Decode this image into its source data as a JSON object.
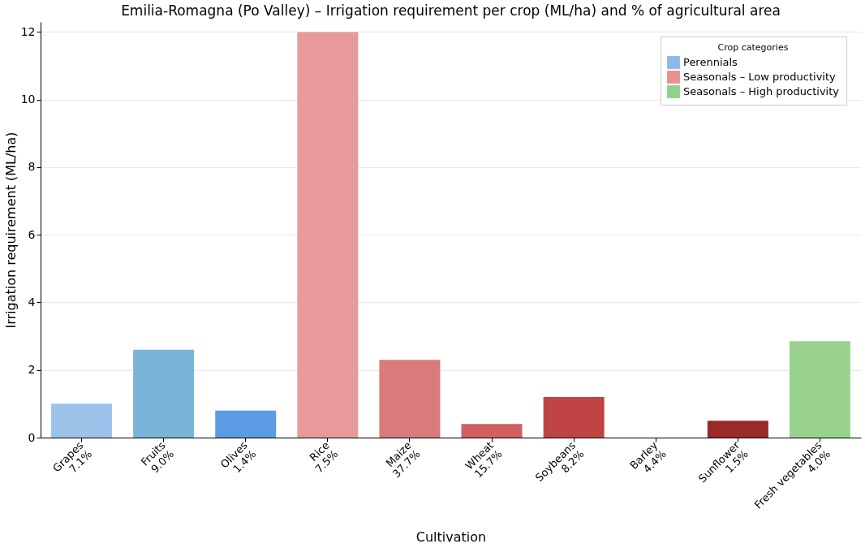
{
  "chart_data": {
    "type": "bar",
    "title": "Emilia-Romagna (Po Valley) – Irrigation requirement per crop (ML/ha) and % of agricultural area",
    "xlabel": "Cultivation",
    "ylabel": "Irrigation requirement (ML/ha)",
    "legend_title": "Crop categories",
    "categories": [
      "Grapes\n7.1%",
      "Fruits\n9.0%",
      "Olives\n1.4%",
      "Rice\n7.5%",
      "Maize\n37.7%",
      "Wheat\n15.7%",
      "Soybeans\n8.2%",
      "Barley\n4.4%",
      "Sunflower\n1.5%",
      "Fresh vegetables\n4.0%"
    ],
    "series": [
      {
        "name": "Perennials",
        "color": "#8db8e8",
        "values": [
          1.0,
          2.6,
          0.8,
          null,
          null,
          null,
          null,
          null,
          null,
          null
        ],
        "colors": [
          "#9dc3ea",
          "#7ab5d9",
          "#5b9be3",
          null,
          null,
          null,
          null,
          null,
          null,
          null
        ]
      },
      {
        "name": "Seasonals – Low productivity",
        "color": "#e88f8f",
        "values": [
          null,
          null,
          null,
          12.0,
          2.3,
          0.4,
          1.2,
          0,
          0.5,
          null
        ],
        "colors": [
          null,
          null,
          null,
          "#e89a9a",
          "#d97b7b",
          "#d06060",
          "#c04444",
          "#b03030",
          "#9a2a2a",
          null
        ]
      },
      {
        "name": "Seasonals – High productivity",
        "color": "#8fd18a",
        "values": [
          null,
          null,
          null,
          null,
          null,
          null,
          null,
          null,
          null,
          2.85
        ],
        "colors": [
          null,
          null,
          null,
          null,
          null,
          null,
          null,
          null,
          null,
          "#9ad38f"
        ]
      }
    ],
    "ylim": [
      0,
      12.3
    ],
    "yticks": [
      0,
      2,
      4,
      6,
      8,
      10,
      12
    ],
    "grid": "y",
    "legend": "top right"
  }
}
